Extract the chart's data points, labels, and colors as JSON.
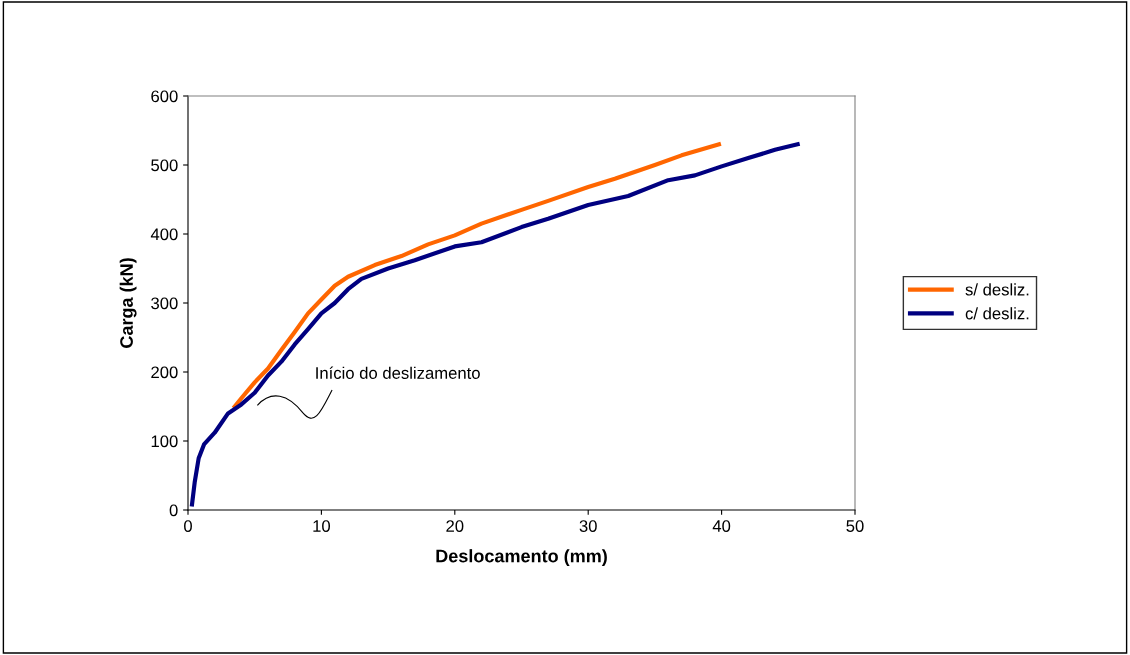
{
  "chart_data": {
    "type": "line",
    "xlabel": "Deslocamento (mm)",
    "ylabel": "Carga (kN)",
    "xlim": [
      0,
      50
    ],
    "ylim": [
      0,
      600
    ],
    "xticks": [
      0,
      10,
      20,
      30,
      40,
      50
    ],
    "yticks": [
      0,
      100,
      200,
      300,
      400,
      500,
      600
    ],
    "grid": false,
    "legend": "right",
    "marker": "none",
    "line_style": "solid",
    "series": [
      {
        "name": "s/ desliz.",
        "color": "#ff6600",
        "x": [
          3.5,
          4,
          5,
          6,
          7,
          8,
          9,
          10,
          11,
          12,
          14,
          16,
          18,
          20,
          22,
          25,
          27,
          30,
          32,
          35,
          37,
          39.8
        ],
        "values": [
          150,
          162,
          185,
          205,
          232,
          258,
          285,
          305,
          325,
          338,
          355,
          368,
          385,
          398,
          415,
          435,
          448,
          468,
          480,
          500,
          514,
          530
        ]
      },
      {
        "name": "c/ desliz.",
        "color": "#000080",
        "x": [
          0.3,
          0.5,
          0.8,
          1.2,
          2,
          3,
          4,
          5,
          6,
          7,
          8,
          9,
          10,
          11,
          12,
          13,
          15,
          17,
          20,
          22,
          25,
          27,
          30,
          33,
          36,
          38,
          40,
          42,
          44,
          45.7
        ],
        "values": [
          8,
          40,
          75,
          95,
          112,
          140,
          153,
          170,
          195,
          215,
          240,
          262,
          285,
          300,
          320,
          335,
          350,
          362,
          382,
          388,
          410,
          422,
          442,
          455,
          478,
          485,
          498,
          510,
          522,
          530
        ]
      }
    ],
    "annotations": [
      "Início do deslizamento"
    ]
  }
}
